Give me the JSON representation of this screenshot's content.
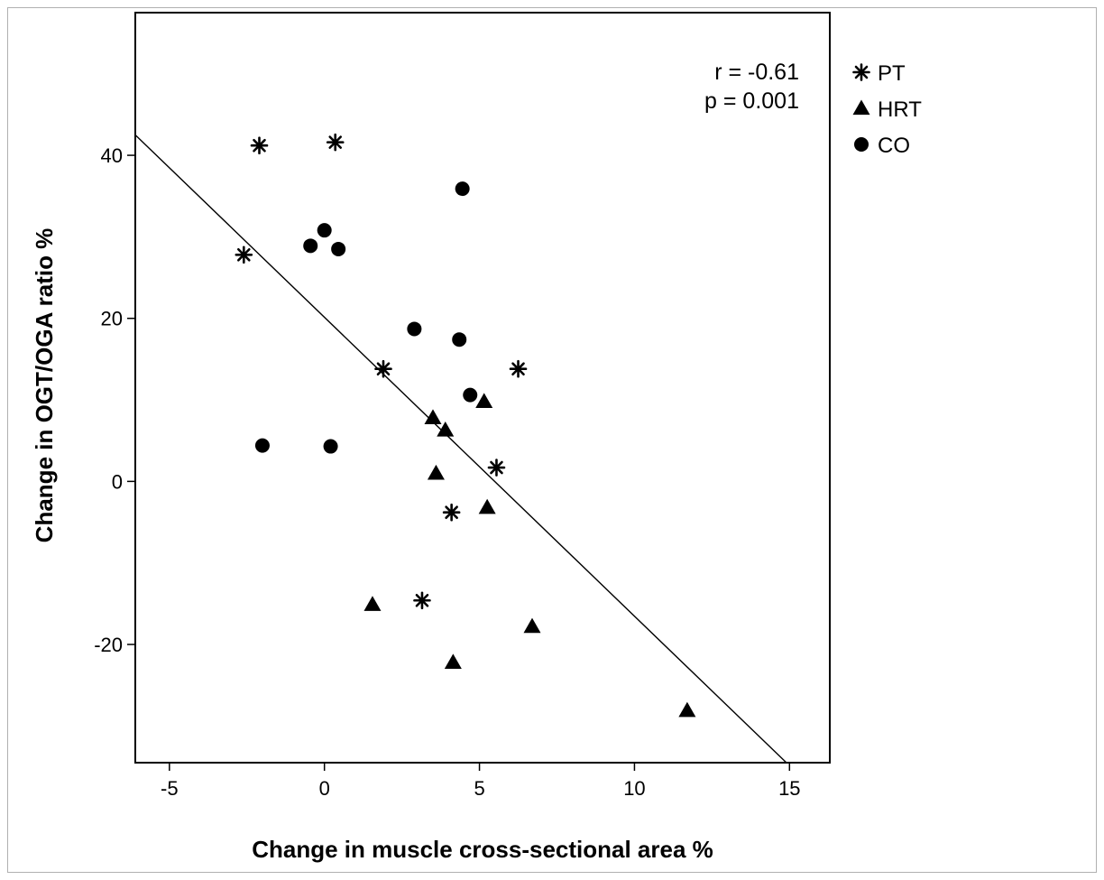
{
  "chart_data": {
    "type": "scatter",
    "title": "",
    "xlabel": "Change in muscle cross-sectional area %",
    "ylabel": "Change in OGT/OGA ratio %",
    "xlim": [
      -6.1,
      16.3
    ],
    "ylim": [
      -34.5,
      57.5
    ],
    "xticks": [
      -5,
      0,
      5,
      10,
      15
    ],
    "yticks": [
      -20,
      0,
      20,
      40
    ],
    "grid": false,
    "legend_position": "right",
    "annotation": {
      "r": "r = -0.61",
      "p": "p = 0.001"
    },
    "fit_line": {
      "x": [
        -6.1,
        14.9
      ],
      "y": [
        42.5,
        -34.5
      ]
    },
    "series": [
      {
        "name": "PT",
        "marker": "asterisk",
        "points": [
          {
            "x": -2.1,
            "y": 41.2
          },
          {
            "x": 0.35,
            "y": 41.6
          },
          {
            "x": -2.6,
            "y": 27.8
          },
          {
            "x": 1.9,
            "y": 13.8
          },
          {
            "x": 6.25,
            "y": 13.8
          },
          {
            "x": 5.55,
            "y": 1.7
          },
          {
            "x": 4.1,
            "y": -3.8
          },
          {
            "x": 3.15,
            "y": -14.6
          }
        ]
      },
      {
        "name": "HRT",
        "marker": "triangle",
        "points": [
          {
            "x": 5.15,
            "y": 9.8
          },
          {
            "x": 3.5,
            "y": 7.8
          },
          {
            "x": 3.9,
            "y": 6.3
          },
          {
            "x": 3.6,
            "y": 1.0
          },
          {
            "x": 5.25,
            "y": -3.2
          },
          {
            "x": 1.55,
            "y": -15.1
          },
          {
            "x": 6.7,
            "y": -17.8
          },
          {
            "x": 4.15,
            "y": -22.2
          },
          {
            "x": 11.7,
            "y": -28.1
          }
        ]
      },
      {
        "name": "CO",
        "marker": "circle",
        "points": [
          {
            "x": 4.45,
            "y": 35.9
          },
          {
            "x": 0.0,
            "y": 30.8
          },
          {
            "x": -0.45,
            "y": 28.9
          },
          {
            "x": 0.45,
            "y": 28.5
          },
          {
            "x": 2.9,
            "y": 18.7
          },
          {
            "x": 4.35,
            "y": 17.4
          },
          {
            "x": 4.7,
            "y": 10.6
          },
          {
            "x": -2.0,
            "y": 4.4
          },
          {
            "x": 0.2,
            "y": 4.3
          }
        ]
      }
    ]
  }
}
